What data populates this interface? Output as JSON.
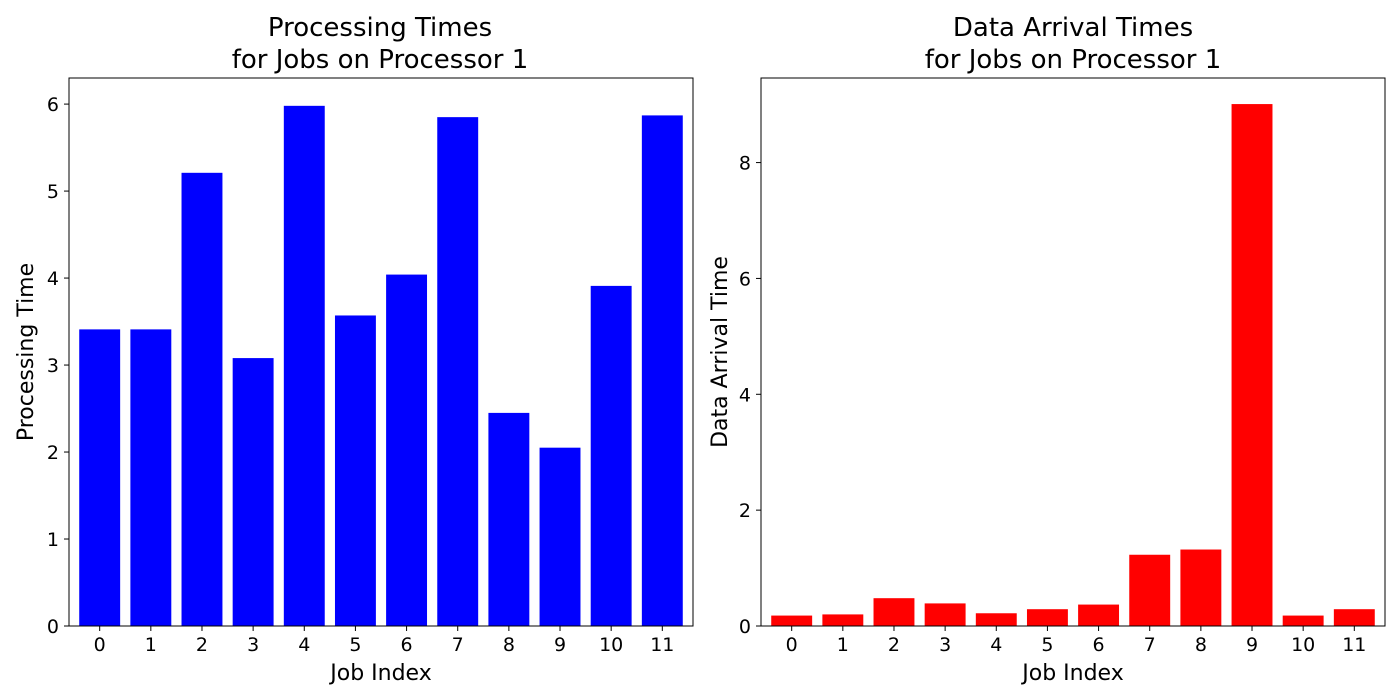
{
  "chart_data": [
    {
      "type": "bar",
      "title_line1": "Processing Times",
      "title_line2": "for Jobs on Processor 1",
      "xlabel": "Job Index",
      "ylabel": "Processing Time",
      "categories": [
        "0",
        "1",
        "2",
        "3",
        "4",
        "5",
        "6",
        "7",
        "8",
        "9",
        "10",
        "11"
      ],
      "values": [
        3.41,
        3.41,
        5.21,
        3.08,
        5.98,
        3.57,
        4.04,
        5.85,
        2.45,
        2.05,
        3.91,
        5.87
      ],
      "ylim": [
        0,
        6.3
      ],
      "yticks": [
        0,
        1,
        2,
        3,
        4,
        5,
        6
      ],
      "color": "#0000ff",
      "grid": false
    },
    {
      "type": "bar",
      "title_line1": "Data Arrival Times",
      "title_line2": "for Jobs on Processor 1",
      "xlabel": "Job Index",
      "ylabel": "Data Arrival Time",
      "categories": [
        "0",
        "1",
        "2",
        "3",
        "4",
        "5",
        "6",
        "7",
        "8",
        "9",
        "10",
        "11"
      ],
      "values": [
        0.18,
        0.2,
        0.48,
        0.39,
        0.22,
        0.29,
        0.37,
        1.23,
        1.32,
        9.01,
        0.18,
        0.29
      ],
      "ylim": [
        0,
        9.46
      ],
      "yticks": [
        0,
        2,
        4,
        6,
        8
      ],
      "color": "#ff0000",
      "grid": false
    }
  ]
}
